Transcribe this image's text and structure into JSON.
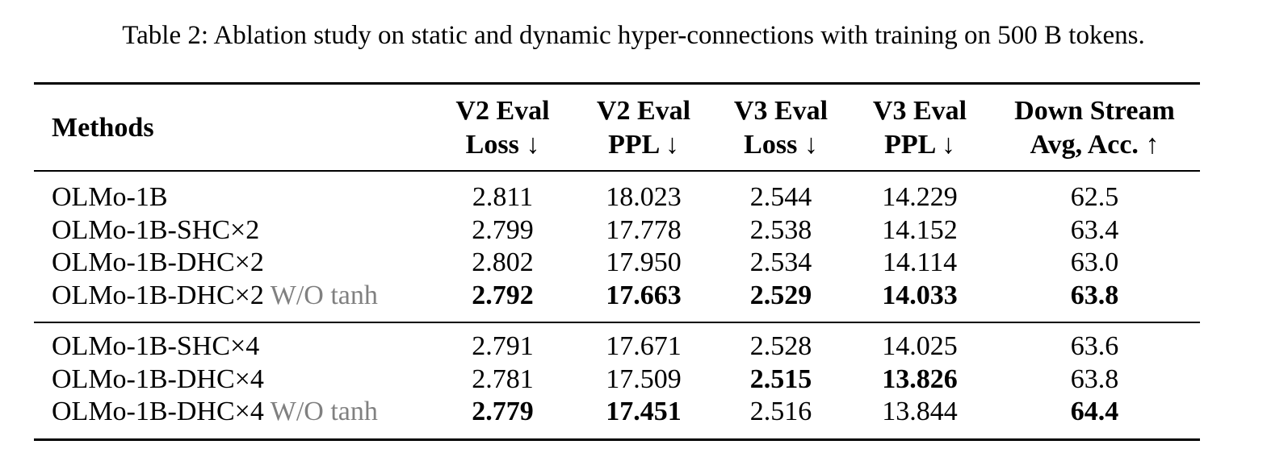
{
  "caption": "Table 2: Ablation study on static and dynamic hyper-connections with training on 500 B tokens.",
  "columns": [
    {
      "line1": "Methods",
      "line2": ""
    },
    {
      "line1": "V2 Eval",
      "line2": "Loss ↓"
    },
    {
      "line1": "V2 Eval",
      "line2": "PPL ↓"
    },
    {
      "line1": "V3 Eval",
      "line2": "Loss ↓"
    },
    {
      "line1": "V3 Eval",
      "line2": "PPL ↓"
    },
    {
      "line1": "Down Stream",
      "line2": "Avg, Acc. ↑"
    }
  ],
  "groups": [
    {
      "rows": [
        {
          "method": "OLMo-1B",
          "suffix": "",
          "values": [
            "2.811",
            "18.023",
            "2.544",
            "14.229",
            "62.5"
          ],
          "bold": [
            false,
            false,
            false,
            false,
            false
          ]
        },
        {
          "method": "OLMo-1B-SHC×2",
          "suffix": "",
          "values": [
            "2.799",
            "17.778",
            "2.538",
            "14.152",
            "63.4"
          ],
          "bold": [
            false,
            false,
            false,
            false,
            false
          ]
        },
        {
          "method": "OLMo-1B-DHC×2",
          "suffix": "",
          "values": [
            "2.802",
            "17.950",
            "2.534",
            "14.114",
            "63.0"
          ],
          "bold": [
            false,
            false,
            false,
            false,
            false
          ]
        },
        {
          "method": "OLMo-1B-DHC×2",
          "suffix": "W/O tanh",
          "values": [
            "2.792",
            "17.663",
            "2.529",
            "14.033",
            "63.8"
          ],
          "bold": [
            true,
            true,
            true,
            true,
            true
          ]
        }
      ]
    },
    {
      "rows": [
        {
          "method": "OLMo-1B-SHC×4",
          "suffix": "",
          "values": [
            "2.791",
            "17.671",
            "2.528",
            "14.025",
            "63.6"
          ],
          "bold": [
            false,
            false,
            false,
            false,
            false
          ]
        },
        {
          "method": "OLMo-1B-DHC×4",
          "suffix": "",
          "values": [
            "2.781",
            "17.509",
            "2.515",
            "13.826",
            "63.8"
          ],
          "bold": [
            false,
            false,
            true,
            true,
            false
          ]
        },
        {
          "method": "OLMo-1B-DHC×4",
          "suffix": "W/O tanh",
          "values": [
            "2.779",
            "17.451",
            "2.516",
            "13.844",
            "64.4"
          ],
          "bold": [
            true,
            true,
            false,
            false,
            true
          ]
        }
      ]
    }
  ]
}
